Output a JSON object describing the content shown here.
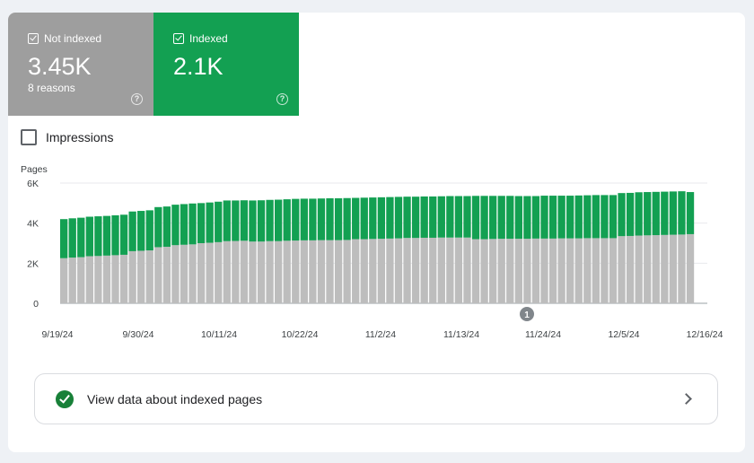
{
  "tiles": {
    "not_indexed": {
      "label": "Not indexed",
      "value": "3.45K",
      "sub": "8 reasons",
      "color": "#9e9e9e",
      "checked": true
    },
    "indexed": {
      "label": "Indexed",
      "value": "2.1K",
      "color": "#13a052",
      "checked": true
    }
  },
  "impressions": {
    "label": "Impressions",
    "checked": false
  },
  "chart_data": {
    "type": "bar",
    "stacked": true,
    "ylabel": "Pages",
    "ylim": [
      0,
      6000
    ],
    "y_ticks": [
      "6K",
      "4K",
      "2K",
      "0"
    ],
    "y_tick_values": [
      6000,
      4000,
      2000,
      0
    ],
    "x_tick_labels": [
      "9/19/24",
      "9/30/24",
      "10/11/24",
      "10/22/24",
      "11/2/24",
      "11/13/24",
      "11/24/24",
      "12/5/24",
      "12/16/24"
    ],
    "annotation": {
      "label": "1",
      "date": "11/24/24"
    },
    "series": [
      {
        "name": "Not indexed",
        "color": "#bdbdbd",
        "values": [
          2250,
          2280,
          2300,
          2350,
          2360,
          2380,
          2400,
          2420,
          2600,
          2620,
          2640,
          2800,
          2820,
          2900,
          2920,
          2940,
          3000,
          3020,
          3050,
          3100,
          3110,
          3120,
          3080,
          3080,
          3100,
          3100,
          3120,
          3130,
          3140,
          3140,
          3150,
          3150,
          3150,
          3160,
          3200,
          3200,
          3210,
          3220,
          3230,
          3240,
          3260,
          3260,
          3270,
          3270,
          3280,
          3280,
          3280,
          3280,
          3200,
          3200,
          3210,
          3220,
          3220,
          3220,
          3220,
          3230,
          3230,
          3230,
          3240,
          3240,
          3240,
          3250,
          3250,
          3250,
          3250,
          3350,
          3360,
          3380,
          3390,
          3400,
          3410,
          3420,
          3430,
          3450
        ]
      },
      {
        "name": "Indexed",
        "color": "#13a052",
        "values": [
          1950,
          1960,
          1970,
          1970,
          1980,
          1980,
          1990,
          2000,
          1980,
          1990,
          2000,
          2000,
          2010,
          2020,
          2030,
          2040,
          2000,
          2010,
          2020,
          2030,
          2020,
          2020,
          2050,
          2060,
          2060,
          2070,
          2070,
          2080,
          2080,
          2080,
          2080,
          2090,
          2090,
          2090,
          2060,
          2070,
          2070,
          2070,
          2070,
          2070,
          2060,
          2060,
          2060,
          2060,
          2060,
          2070,
          2070,
          2070,
          2160,
          2160,
          2150,
          2140,
          2140,
          2130,
          2130,
          2120,
          2140,
          2140,
          2130,
          2130,
          2140,
          2140,
          2150,
          2150,
          2150,
          2150,
          2150,
          2160,
          2160,
          2160,
          2160,
          2160,
          2160,
          2100
        ]
      }
    ]
  },
  "bottom_button": {
    "label": "View data about indexed pages"
  }
}
